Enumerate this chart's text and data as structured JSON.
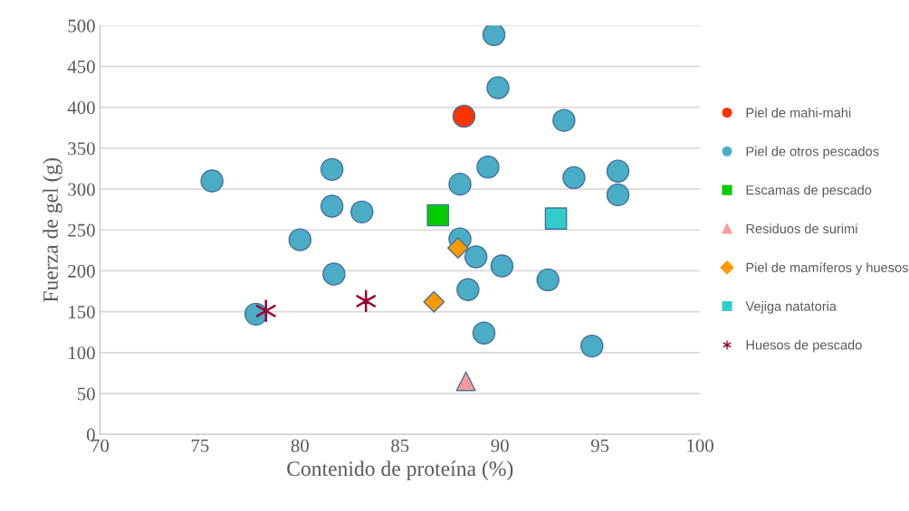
{
  "chart_data": {
    "type": "scatter",
    "xlabel": "Contenido de proteína (%)",
    "ylabel": "Fuerza de gel (g)",
    "xlim": [
      70,
      100
    ],
    "xticks": [
      70,
      75,
      80,
      85,
      90,
      95,
      100
    ],
    "ylim": [
      0,
      500
    ],
    "yticks": [
      0,
      50,
      100,
      150,
      200,
      250,
      300,
      350,
      400,
      450,
      500
    ],
    "grid": "y",
    "legend": "right",
    "series": [
      {
        "name": "Piel de mahi-mahi",
        "color": "#ff3300",
        "marker": "circle",
        "x": [
          88.2
        ],
        "values": [
          389
        ]
      },
      {
        "name": "Piel de otros pescados",
        "color": "#4bacc6",
        "marker": "circle",
        "x": [
          75.6,
          77.8,
          80.0,
          81.6,
          81.6,
          81.7,
          83.1,
          88.0,
          88.0,
          88.8,
          88.4,
          89.2,
          89.4,
          89.7,
          89.9,
          90.1,
          92.4,
          93.2,
          93.7,
          95.9,
          95.9,
          94.6
        ],
        "values": [
          310,
          147,
          238,
          324,
          279,
          196,
          272,
          306,
          239,
          217,
          177,
          124,
          327,
          489,
          424,
          206,
          189,
          384,
          314,
          322,
          293,
          108
        ]
      },
      {
        "name": "Escamas de pescado",
        "color": "#00cc00",
        "marker": "square",
        "x": [
          86.9
        ],
        "values": [
          268
        ]
      },
      {
        "name": "Residuos de surimi",
        "color": "#ff9999",
        "marker": "triangle",
        "x": [
          88.3
        ],
        "values": [
          65
        ]
      },
      {
        "name": "Piel de mamíferos y huesos",
        "color": "#ff9900",
        "marker": "diamond",
        "x": [
          87.9,
          86.7
        ],
        "values": [
          228,
          162
        ]
      },
      {
        "name": "Vejiga natatoria",
        "color": "#33cccc",
        "marker": "square",
        "x": [
          92.8
        ],
        "values": [
          264
        ]
      },
      {
        "name": "Huesos de pescado",
        "color": "#990033",
        "marker": "cross",
        "x": [
          78.3,
          83.3
        ],
        "values": [
          151,
          163
        ]
      }
    ]
  }
}
